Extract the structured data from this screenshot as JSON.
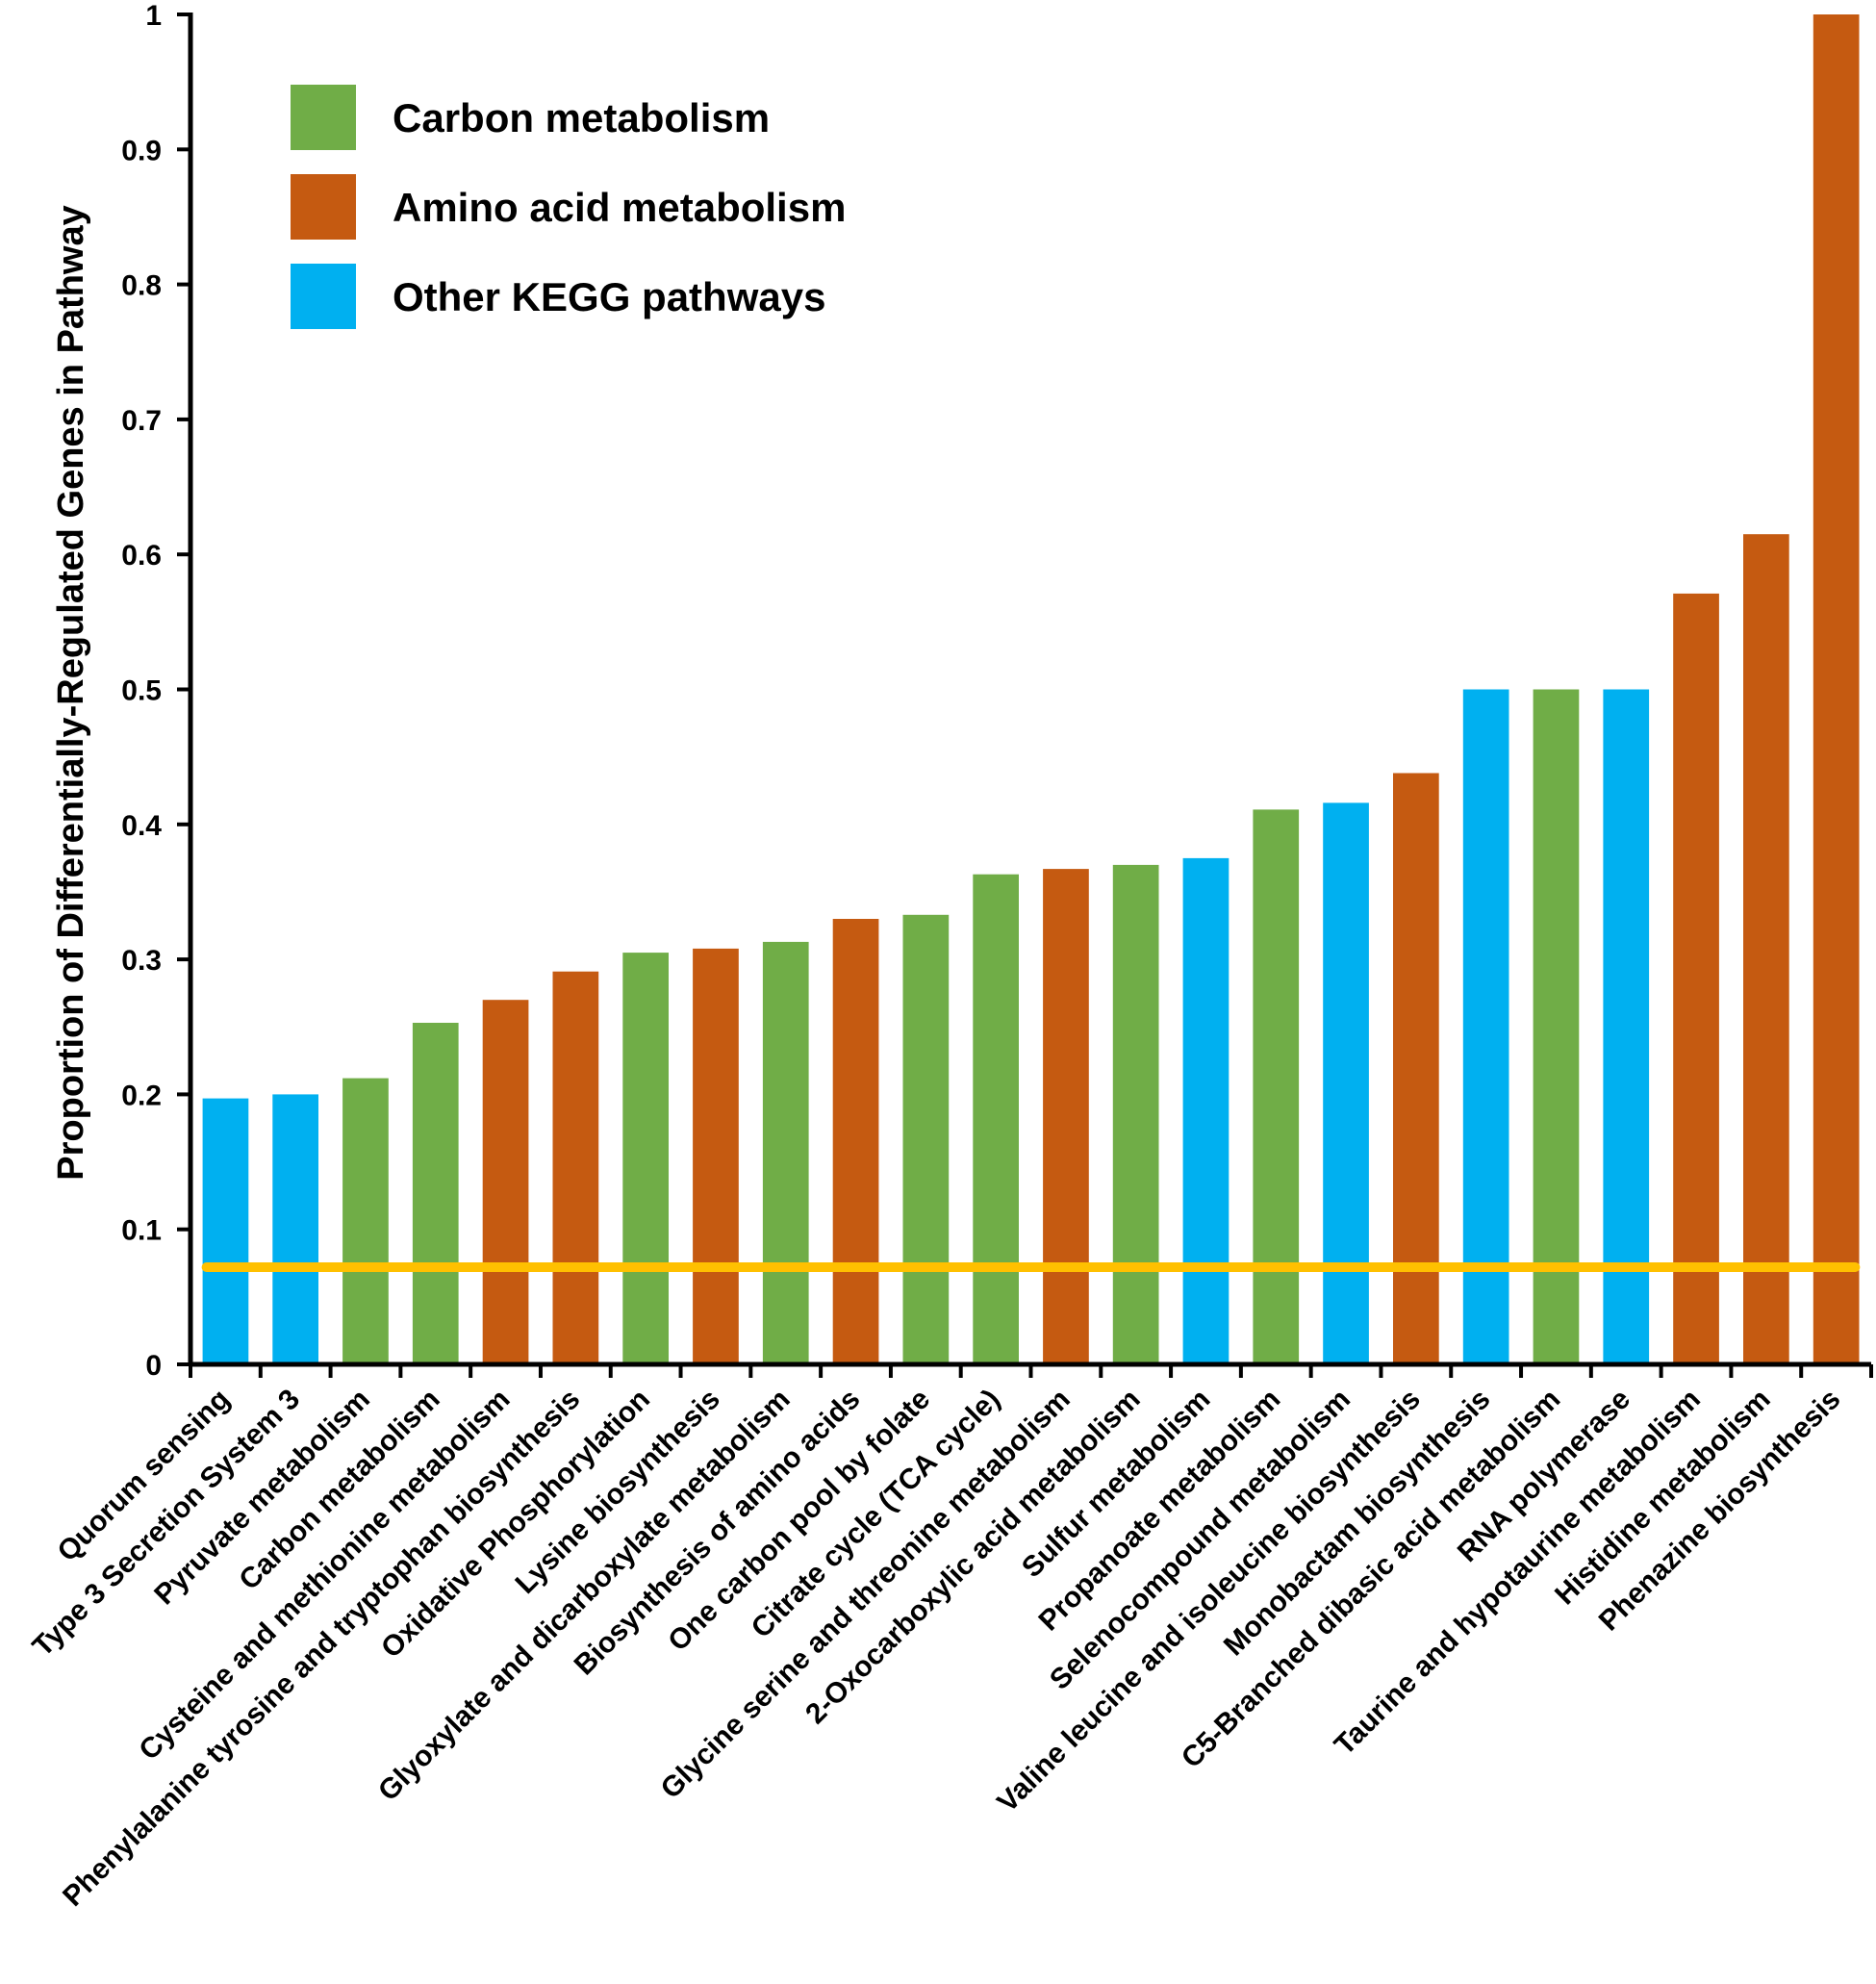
{
  "chart_data": {
    "type": "bar",
    "title": "",
    "xlabel": "",
    "ylabel": "Proportion of Differentially-Regulated Genes in Pathway",
    "ylim": [
      0,
      1
    ],
    "yticks": [
      0,
      0.1,
      0.2,
      0.3,
      0.4,
      0.5,
      0.6,
      0.7,
      0.8,
      0.9,
      1
    ],
    "ytick_labels": [
      "0",
      "0.1",
      "0.2",
      "0.3",
      "0.4",
      "0.5",
      "0.6",
      "0.7",
      "0.8",
      "0.9",
      "1"
    ],
    "grid": false,
    "legend_position": "top-left",
    "colors": {
      "carbon": "#70ad47",
      "amino": "#c55a11",
      "other": "#00b0f0",
      "threshold": "#ffc000"
    },
    "legend": [
      {
        "key": "carbon",
        "label": "Carbon metabolism"
      },
      {
        "key": "amino",
        "label": "Amino acid metabolism"
      },
      {
        "key": "other",
        "label": "Other KEGG pathways"
      }
    ],
    "reference_line": {
      "y": 0.072
    },
    "categories": [
      "Quorum sensing",
      "Type 3 Secretion System 3",
      "Pyruvate metabolism",
      "Carbon metabolism",
      "Cysteine and methionine metabolism",
      "Phenylalanine tyrosine and tryptophan biosynthesis",
      "Oxidative Phosphorylation",
      "Lysine biosynthesis",
      "Glyoxylate and dicarboxylate metabolism",
      "Biosynthesis of amino acids",
      "One carbon pool by folate",
      "Citrate cycle (TCA cycle)",
      "Glycine serine and threonine metabolism",
      "2-Oxocarboxylic acid metabolism",
      "Sulfur metabolism",
      "Propanoate metabolism",
      "Selenocompound metabolism",
      "Valine leucine and isoleucine biosynthesis",
      "Monobactam biosynthesis",
      "C5-Branched dibasic acid metabolism",
      "RNA polymerase",
      "Taurine and hypotaurine metabolism",
      "Histidine metabolism",
      "Phenazine biosynthesis"
    ],
    "values": [
      0.197,
      0.2,
      0.212,
      0.253,
      0.27,
      0.291,
      0.305,
      0.308,
      0.313,
      0.33,
      0.333,
      0.363,
      0.367,
      0.37,
      0.375,
      0.411,
      0.416,
      0.438,
      0.5,
      0.5,
      0.5,
      0.571,
      0.615,
      1.0
    ],
    "groups": [
      "other",
      "other",
      "carbon",
      "carbon",
      "amino",
      "amino",
      "carbon",
      "amino",
      "carbon",
      "amino",
      "carbon",
      "carbon",
      "amino",
      "carbon",
      "other",
      "carbon",
      "other",
      "amino",
      "other",
      "carbon",
      "other",
      "amino",
      "amino",
      "amino"
    ]
  }
}
